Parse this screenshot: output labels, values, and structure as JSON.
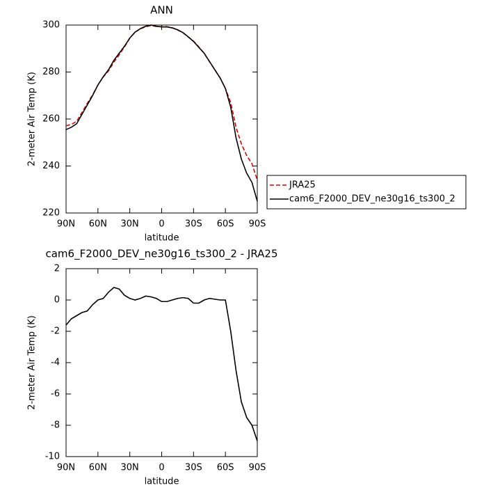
{
  "chart_data": [
    {
      "type": "line",
      "title": "ANN",
      "ylabel": "2-meter Air Temp (K)",
      "xlabel": "latitude",
      "x": [
        90,
        85,
        80,
        75,
        70,
        65,
        60,
        55,
        50,
        45,
        40,
        35,
        30,
        25,
        20,
        15,
        10,
        5,
        0,
        -5,
        -10,
        -15,
        -20,
        -25,
        -30,
        -35,
        -40,
        -45,
        -50,
        -55,
        -60,
        -65,
        -70,
        -75,
        -80,
        -85,
        -90
      ],
      "xlim": [
        90,
        -90
      ],
      "xticks": [
        {
          "value": 90,
          "label": "90N"
        },
        {
          "value": 60,
          "label": "60N"
        },
        {
          "value": 30,
          "label": "30N"
        },
        0,
        {
          "value": -30,
          "label": "30S"
        },
        {
          "value": -60,
          "label": "60S"
        },
        {
          "value": -90,
          "label": "90S"
        }
      ],
      "ylim": [
        220,
        300
      ],
      "yticks": [
        220,
        240,
        260,
        280,
        300
      ],
      "legend": "right",
      "series": [
        {
          "name": "JRA25",
          "color": "#e00000",
          "style": "dashed",
          "values": [
            257.1,
            257.7,
            259,
            262.8,
            266.7,
            270.3,
            274.5,
            277.9,
            280.5,
            284.2,
            287.3,
            290.7,
            294.4,
            297,
            298.4,
            299.3,
            299.8,
            299.4,
            299.3,
            299.3,
            298.8,
            297.9,
            296.7,
            294.9,
            293.2,
            290.7,
            288,
            284.4,
            281,
            277.5,
            273,
            267,
            256.5,
            249.5,
            244.5,
            241,
            234
          ]
        },
        {
          "name": "cam6_F2000_DEV_ne30g16_ts300_2",
          "color": "#000000",
          "style": "solid",
          "values": [
            255.5,
            256.5,
            258,
            262,
            266,
            270,
            274.5,
            278,
            281,
            285,
            288,
            291,
            294.5,
            297,
            298.5,
            299.5,
            300,
            299.5,
            299.2,
            299.2,
            298.8,
            298,
            296.8,
            295,
            293,
            290.5,
            288,
            284.5,
            281,
            277.5,
            273,
            265,
            252,
            243,
            237,
            233,
            225
          ]
        }
      ]
    },
    {
      "type": "line",
      "title": "cam6_F2000_DEV_ne30g16_ts300_2 - JRA25",
      "ylabel": "2-meter Air Temp (K)",
      "xlabel": "latitude",
      "x": [
        90,
        85,
        80,
        75,
        70,
        65,
        60,
        55,
        50,
        45,
        40,
        35,
        30,
        25,
        20,
        15,
        10,
        5,
        0,
        -5,
        -10,
        -15,
        -20,
        -25,
        -30,
        -35,
        -40,
        -45,
        -50,
        -55,
        -60,
        -65,
        -70,
        -75,
        -80,
        -85,
        -90
      ],
      "xlim": [
        90,
        -90
      ],
      "xticks": [
        {
          "value": 90,
          "label": "90N"
        },
        {
          "value": 60,
          "label": "60N"
        },
        {
          "value": 30,
          "label": "30N"
        },
        0,
        {
          "value": -30,
          "label": "30S"
        },
        {
          "value": -60,
          "label": "60S"
        },
        {
          "value": -90,
          "label": "90S"
        }
      ],
      "ylim": [
        -10,
        2
      ],
      "yticks": [
        -10,
        -8,
        -6,
        -4,
        -2,
        0,
        2
      ],
      "series": [
        {
          "color": "#000000",
          "style": "solid",
          "values": [
            -1.6,
            -1.2,
            -1.0,
            -0.8,
            -0.7,
            -0.3,
            0.0,
            0.1,
            0.5,
            0.8,
            0.7,
            0.3,
            0.1,
            0.0,
            0.1,
            0.25,
            0.2,
            0.1,
            -0.1,
            -0.1,
            0.0,
            0.1,
            0.15,
            0.1,
            -0.2,
            -0.2,
            0.0,
            0.1,
            0.05,
            0.0,
            0.0,
            -2.0,
            -4.5,
            -6.5,
            -7.5,
            -8.0,
            -9.0
          ]
        }
      ]
    }
  ]
}
